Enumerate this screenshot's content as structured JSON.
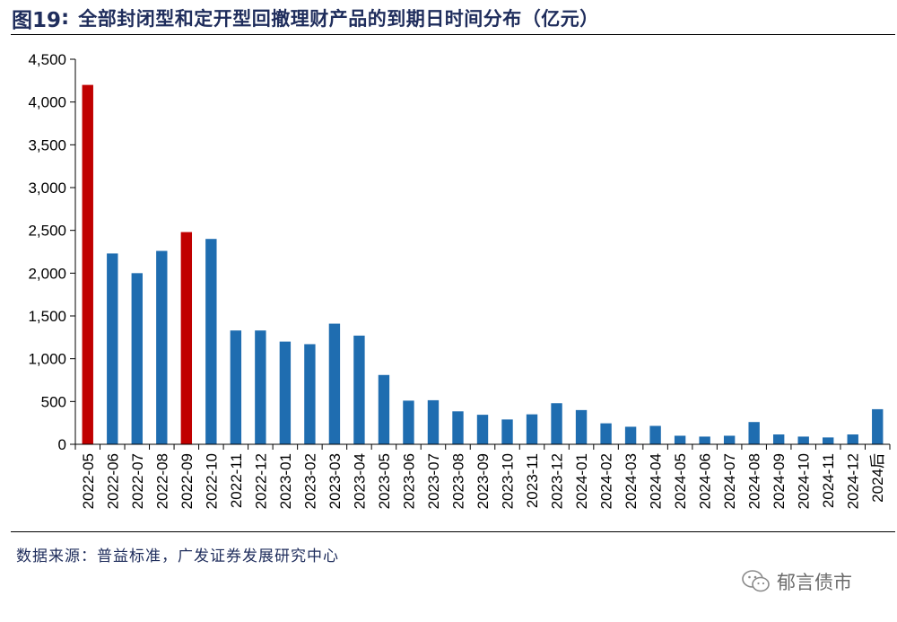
{
  "header": {
    "fig_number": "图19",
    "fig_colon": ":",
    "fig_title": "全部封闭型和定开型回撤理财产品的到期日时间分布（亿元）"
  },
  "footer": {
    "source": "数据来源：普益标准，广发证券发展研究中心",
    "watermark": "郁言债市",
    "watermark_icon": "wechat-icon"
  },
  "colors": {
    "bar_default": "#1f6db0",
    "bar_highlight": "#c00000",
    "title": "#1f2d5c"
  },
  "chart_data": {
    "type": "bar",
    "title": "全部封闭型和定开型回撤理财产品的到期日时间分布（亿元）",
    "xlabel": "",
    "ylabel": "",
    "ylim": [
      0,
      4500
    ],
    "yticks": [
      0,
      500,
      1000,
      1500,
      2000,
      2500,
      3000,
      3500,
      4000,
      4500
    ],
    "ytick_labels": [
      "0",
      "500",
      "1,000",
      "1,500",
      "2,000",
      "2,500",
      "3,000",
      "3,500",
      "4,000",
      "4,500"
    ],
    "grid": false,
    "legend": "none",
    "categories": [
      "2022-05",
      "2022-06",
      "2022-07",
      "2022-08",
      "2022-09",
      "2022-10",
      "2022-11",
      "2022-12",
      "2023-01",
      "2023-02",
      "2023-03",
      "2023-04",
      "2023-05",
      "2023-06",
      "2023-07",
      "2023-08",
      "2023-09",
      "2023-10",
      "2023-11",
      "2023-12",
      "2024-01",
      "2024-02",
      "2024-03",
      "2024-04",
      "2024-05",
      "2024-06",
      "2024-07",
      "2024-08",
      "2024-09",
      "2024-10",
      "2024-11",
      "2024-12",
      "2024后"
    ],
    "values": [
      4200,
      2230,
      2000,
      2260,
      2480,
      2400,
      1330,
      1330,
      1200,
      1170,
      1410,
      1270,
      810,
      510,
      515,
      385,
      345,
      290,
      350,
      480,
      400,
      245,
      205,
      215,
      100,
      90,
      100,
      260,
      115,
      90,
      80,
      115,
      410
    ],
    "highlight_categories": [
      "2022-05",
      "2022-09"
    ]
  }
}
